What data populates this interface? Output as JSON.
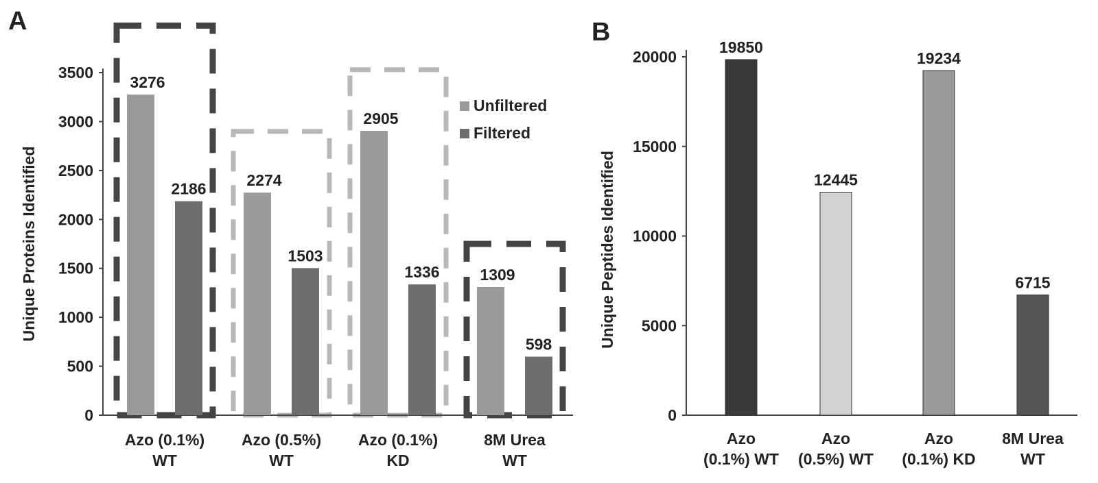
{
  "panel_labels": {
    "a": "A",
    "b": "B"
  },
  "colors": {
    "unfiltered": "#9a9a9a",
    "filtered": "#6e6e6e",
    "axis": "#444444",
    "box_dark": "#444444",
    "box_light": "#b8b8b8",
    "text": "#222222"
  },
  "chart_data": [
    {
      "type": "bar",
      "panel": "A",
      "categories": [
        "Azo (0.1%)\nWT",
        "Azo (0.5%)\nWT",
        "Azo (0.1%)\nKD",
        "8M Urea\nWT"
      ],
      "series": [
        {
          "name": "Unfiltered",
          "values": [
            3276,
            2274,
            2905,
            1309
          ]
        },
        {
          "name": "Filtered",
          "values": [
            2186,
            1503,
            1336,
            598
          ]
        }
      ],
      "data_labels": [
        [
          "3276",
          "2186"
        ],
        [
          "2274",
          "1503"
        ],
        [
          "2905",
          "1336"
        ],
        [
          "1309",
          "598"
        ]
      ],
      "ylabel": "Unique Proteins Identified",
      "ylim": [
        0,
        3500
      ],
      "yticks": [
        0,
        500,
        1000,
        1500,
        2000,
        2500,
        3000,
        3500
      ],
      "legend": [
        "Unfiltered",
        "Filtered"
      ],
      "legend_position": "top-right",
      "grid": false,
      "highlight_boxes": [
        {
          "category": "Azo (0.1%)\nWT",
          "top_value": 3980,
          "style": "dark"
        },
        {
          "category": "Azo (0.5%)\nWT",
          "top_value": 2900,
          "style": "light"
        },
        {
          "category": "Azo (0.1%)\nKD",
          "top_value": 3530,
          "style": "light"
        },
        {
          "category": "8M Urea\nWT",
          "top_value": 1750,
          "style": "dark"
        }
      ]
    },
    {
      "type": "bar",
      "panel": "B",
      "categories": [
        "Azo\n(0.1%) WT",
        "Azo\n(0.5%) WT",
        "Azo\n(0.1%) KD",
        "8M Urea\nWT"
      ],
      "values": [
        19850,
        12445,
        19234,
        6715
      ],
      "data_labels": [
        "19850",
        "12445",
        "19234",
        "6715"
      ],
      "bar_colors": [
        "#3a3a3a",
        "#d2d2d2",
        "#9a9a9a",
        "#555555"
      ],
      "ylabel": "Unique Peptides Identified",
      "ylim": [
        0,
        20000
      ],
      "yticks": [
        0,
        5000,
        10000,
        15000,
        20000
      ],
      "grid": false
    }
  ]
}
